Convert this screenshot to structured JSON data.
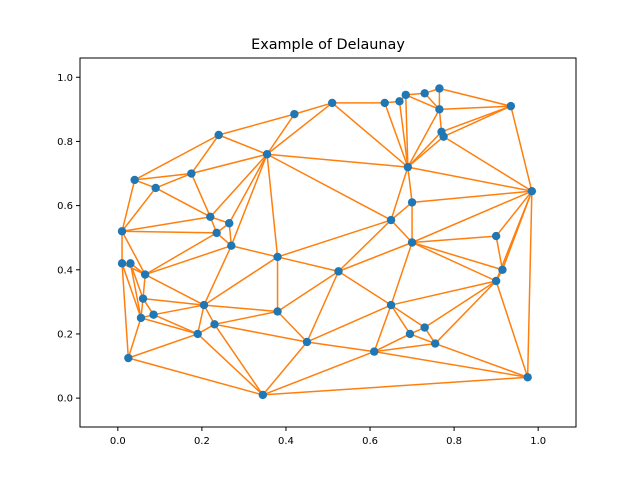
{
  "chart_data": {
    "type": "scatter",
    "title": "Example of Delaunay",
    "xlabel": "",
    "ylabel": "",
    "xlim": [
      -0.09,
      1.09
    ],
    "ylim": [
      -0.09,
      1.06
    ],
    "xticks": [
      0.0,
      0.2,
      0.4,
      0.6,
      0.8,
      1.0
    ],
    "yticks": [
      0.0,
      0.2,
      0.4,
      0.6,
      0.8,
      1.0
    ],
    "xtick_labels": [
      "0.0",
      "0.2",
      "0.4",
      "0.6",
      "0.8",
      "1.0"
    ],
    "ytick_labels": [
      "0.0",
      "0.2",
      "0.4",
      "0.6",
      "0.8",
      "1.0"
    ],
    "grid": false,
    "point_color": "#1f77b4",
    "edge_color": "#ff7f0e",
    "points": [
      [
        0.01,
        0.52
      ],
      [
        0.01,
        0.42
      ],
      [
        0.03,
        0.42
      ],
      [
        0.04,
        0.68
      ],
      [
        0.09,
        0.655
      ],
      [
        0.065,
        0.385
      ],
      [
        0.06,
        0.31
      ],
      [
        0.055,
        0.25
      ],
      [
        0.085,
        0.26
      ],
      [
        0.025,
        0.125
      ],
      [
        0.175,
        0.7
      ],
      [
        0.24,
        0.82
      ],
      [
        0.22,
        0.565
      ],
      [
        0.235,
        0.515
      ],
      [
        0.265,
        0.545
      ],
      [
        0.27,
        0.475
      ],
      [
        0.205,
        0.29
      ],
      [
        0.23,
        0.23
      ],
      [
        0.19,
        0.2
      ],
      [
        0.355,
        0.76
      ],
      [
        0.42,
        0.885
      ],
      [
        0.51,
        0.92
      ],
      [
        0.635,
        0.92
      ],
      [
        0.67,
        0.925
      ],
      [
        0.685,
        0.945
      ],
      [
        0.73,
        0.95
      ],
      [
        0.765,
        0.965
      ],
      [
        0.765,
        0.9
      ],
      [
        0.77,
        0.83
      ],
      [
        0.775,
        0.815
      ],
      [
        0.935,
        0.91
      ],
      [
        0.69,
        0.72
      ],
      [
        0.7,
        0.61
      ],
      [
        0.65,
        0.555
      ],
      [
        0.7,
        0.485
      ],
      [
        0.9,
        0.505
      ],
      [
        0.915,
        0.4
      ],
      [
        0.985,
        0.645
      ],
      [
        0.9,
        0.365
      ],
      [
        0.38,
        0.44
      ],
      [
        0.525,
        0.395
      ],
      [
        0.38,
        0.27
      ],
      [
        0.45,
        0.175
      ],
      [
        0.345,
        0.01
      ],
      [
        0.65,
        0.29
      ],
      [
        0.695,
        0.2
      ],
      [
        0.73,
        0.22
      ],
      [
        0.755,
        0.17
      ],
      [
        0.61,
        0.145
      ],
      [
        0.975,
        0.065
      ]
    ],
    "triangles": [
      [
        0,
        1,
        5
      ],
      [
        1,
        2,
        5
      ],
      [
        2,
        5,
        6
      ],
      [
        5,
        6,
        16
      ],
      [
        6,
        7,
        8
      ],
      [
        6,
        8,
        16
      ],
      [
        7,
        8,
        18
      ],
      [
        8,
        16,
        18
      ],
      [
        1,
        7,
        9
      ],
      [
        1,
        2,
        7
      ],
      [
        2,
        6,
        7
      ],
      [
        7,
        9,
        18
      ],
      [
        9,
        18,
        43
      ],
      [
        17,
        18,
        43
      ],
      [
        16,
        17,
        18
      ],
      [
        16,
        17,
        41
      ],
      [
        17,
        41,
        42
      ],
      [
        17,
        42,
        43
      ],
      [
        0,
        3,
        4
      ],
      [
        3,
        4,
        10
      ],
      [
        3,
        10,
        11
      ],
      [
        0,
        4,
        12
      ],
      [
        4,
        10,
        12
      ],
      [
        10,
        11,
        19
      ],
      [
        10,
        12,
        19
      ],
      [
        0,
        12,
        13
      ],
      [
        0,
        13,
        5
      ],
      [
        5,
        13,
        15
      ],
      [
        12,
        13,
        14
      ],
      [
        13,
        14,
        15
      ],
      [
        12,
        14,
        19
      ],
      [
        14,
        15,
        19
      ],
      [
        15,
        19,
        39
      ],
      [
        15,
        16,
        39
      ],
      [
        5,
        15,
        16
      ],
      [
        16,
        39,
        41
      ],
      [
        11,
        19,
        20
      ],
      [
        19,
        20,
        21
      ],
      [
        19,
        21,
        31
      ],
      [
        19,
        31,
        33
      ],
      [
        19,
        33,
        39
      ],
      [
        21,
        22,
        31
      ],
      [
        22,
        23,
        31
      ],
      [
        23,
        24,
        31
      ],
      [
        24,
        25,
        27
      ],
      [
        25,
        26,
        27
      ],
      [
        24,
        27,
        31
      ],
      [
        27,
        28,
        31
      ],
      [
        28,
        29,
        31
      ],
      [
        27,
        28,
        30
      ],
      [
        26,
        27,
        30
      ],
      [
        28,
        29,
        30
      ],
      [
        29,
        30,
        37
      ],
      [
        29,
        31,
        37
      ],
      [
        31,
        32,
        37
      ],
      [
        31,
        32,
        33
      ],
      [
        32,
        33,
        34
      ],
      [
        32,
        34,
        37
      ],
      [
        34,
        35,
        37
      ],
      [
        34,
        35,
        36
      ],
      [
        35,
        36,
        37
      ],
      [
        36,
        37,
        38
      ],
      [
        37,
        38,
        49
      ],
      [
        33,
        34,
        40
      ],
      [
        33,
        39,
        40
      ],
      [
        39,
        40,
        41
      ],
      [
        40,
        41,
        42
      ],
      [
        34,
        40,
        44
      ],
      [
        34,
        36,
        38
      ],
      [
        34,
        38,
        44
      ],
      [
        38,
        44,
        46
      ],
      [
        38,
        46,
        47
      ],
      [
        38,
        47,
        49
      ],
      [
        40,
        42,
        44
      ],
      [
        42,
        44,
        48
      ],
      [
        44,
        45,
        48
      ],
      [
        44,
        45,
        46
      ],
      [
        45,
        46,
        47
      ],
      [
        45,
        47,
        48
      ],
      [
        47,
        48,
        49
      ],
      [
        42,
        43,
        48
      ],
      [
        43,
        48,
        49
      ]
    ]
  }
}
